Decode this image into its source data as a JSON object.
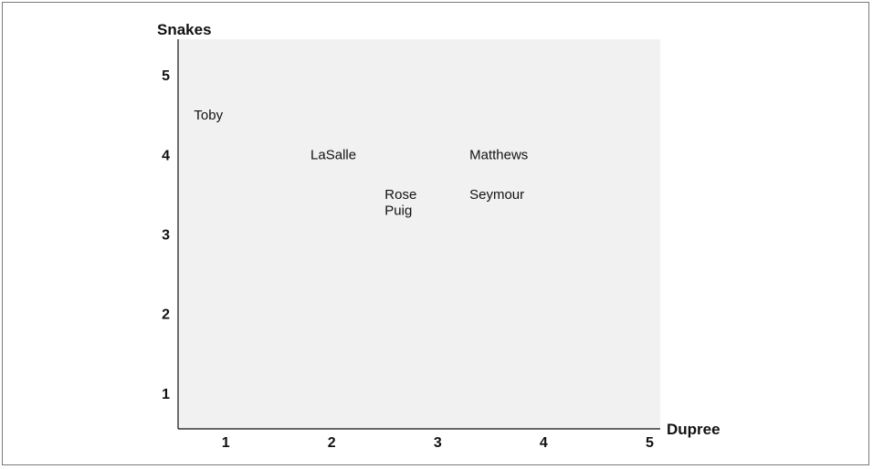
{
  "chart_data": {
    "type": "scatter",
    "xlabel": "Dupree",
    "ylabel": "Snakes",
    "xlim": [
      0.55,
      5.1
    ],
    "ylim": [
      0.55,
      5.45
    ],
    "xticks": [
      "1",
      "2",
      "3",
      "4",
      "5"
    ],
    "yticks": [
      "1",
      "2",
      "3",
      "4",
      "5"
    ],
    "background": "#f1f1f1",
    "grid": false,
    "points": [
      {
        "label": "Toby",
        "x": 0.7,
        "y": 4.5
      },
      {
        "label": "LaSalle",
        "x": 1.8,
        "y": 4.0
      },
      {
        "label": "Rose",
        "x": 2.5,
        "y": 3.5
      },
      {
        "label": "Puig",
        "x": 2.5,
        "y": 3.3
      },
      {
        "label": "Matthews",
        "x": 3.3,
        "y": 4.0
      },
      {
        "label": "Seymour",
        "x": 3.3,
        "y": 3.5
      }
    ]
  }
}
